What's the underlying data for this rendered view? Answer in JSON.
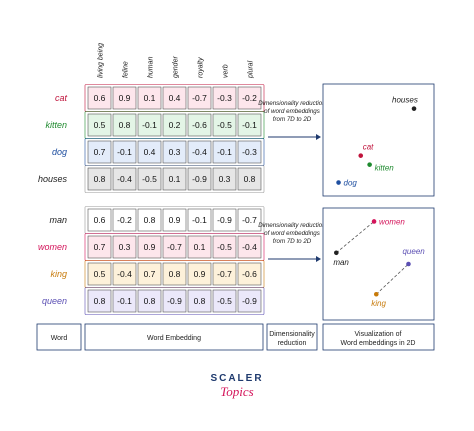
{
  "dimensions": [
    "living being",
    "feline",
    "human",
    "gender",
    "royalty",
    "verb",
    "plural"
  ],
  "groups": [
    {
      "words": [
        {
          "word": "cat",
          "color": "#c0143c",
          "bg": "#fde6ec",
          "values": [
            "0.6",
            "0.9",
            "0.1",
            "0.4",
            "-0.7",
            "-0.3",
            "-0.2"
          ]
        },
        {
          "word": "kitten",
          "color": "#1e8a2e",
          "bg": "#e3f5e6",
          "values": [
            "0.5",
            "0.8",
            "-0.1",
            "0.2",
            "-0.6",
            "-0.5",
            "-0.1"
          ]
        },
        {
          "word": "dog",
          "color": "#1f4fa0",
          "bg": "#e3ecfa",
          "values": [
            "0.7",
            "-0.1",
            "0.4",
            "0.3",
            "-0.4",
            "-0.1",
            "-0.3"
          ]
        },
        {
          "word": "houses",
          "color": "#222222",
          "bg": "#e6e6e6",
          "values": [
            "0.8",
            "-0.4",
            "-0.5",
            "0.1",
            "-0.9",
            "0.3",
            "0.8"
          ]
        }
      ],
      "note": "Dimensionality reduction of word embeddings from 7D to 2D",
      "points": [
        {
          "label": "houses",
          "color": "#222222",
          "x": 0.82,
          "y": 0.22
        },
        {
          "label": "cat",
          "color": "#c0143c",
          "x": 0.34,
          "y": 0.64
        },
        {
          "label": "kitten",
          "color": "#1e8a2e",
          "x": 0.42,
          "y": 0.72
        },
        {
          "label": "dog",
          "color": "#1f4fa0",
          "x": 0.14,
          "y": 0.88
        }
      ]
    },
    {
      "words": [
        {
          "word": "man",
          "color": "#222222",
          "bg": "#ffffff",
          "values": [
            "0.6",
            "-0.2",
            "0.8",
            "0.9",
            "-0.1",
            "-0.9",
            "-0.7"
          ]
        },
        {
          "word": "women",
          "color": "#d4145a",
          "bg": "#fde6ec",
          "values": [
            "0.7",
            "0.3",
            "0.9",
            "-0.7",
            "0.1",
            "-0.5",
            "-0.4"
          ]
        },
        {
          "word": "king",
          "color": "#c77a0a",
          "bg": "#fdf1da",
          "values": [
            "0.5",
            "-0.4",
            "0.7",
            "0.8",
            "0.9",
            "-0.7",
            "-0.6"
          ]
        },
        {
          "word": "queen",
          "color": "#5b4fb3",
          "bg": "#ebe8fa",
          "values": [
            "0.8",
            "-0.1",
            "0.8",
            "-0.9",
            "0.8",
            "-0.5",
            "-0.9"
          ]
        }
      ],
      "note": "Dimensionality reduction of word embeddings from 7D to 2D",
      "points": [
        {
          "label": "women",
          "color": "#d4145a",
          "x": 0.46,
          "y": 0.12
        },
        {
          "label": "man",
          "color": "#222222",
          "x": 0.12,
          "y": 0.4
        },
        {
          "label": "queen",
          "color": "#5b4fb3",
          "x": 0.77,
          "y": 0.5
        },
        {
          "label": "king",
          "color": "#c77a0a",
          "x": 0.48,
          "y": 0.77
        }
      ],
      "links": [
        [
          "man",
          "women"
        ],
        [
          "king",
          "queen"
        ]
      ]
    }
  ],
  "footer": {
    "word": "Word",
    "embedding": "Word Embedding",
    "reduction": "Dimensionality reduction",
    "visualization": "Visualization of Word embeddings in 2D"
  },
  "logo": {
    "top": "SCALER",
    "bottom": "Topics"
  },
  "colors": {
    "border": "#1f3a6e",
    "accent": "#d4145a"
  }
}
